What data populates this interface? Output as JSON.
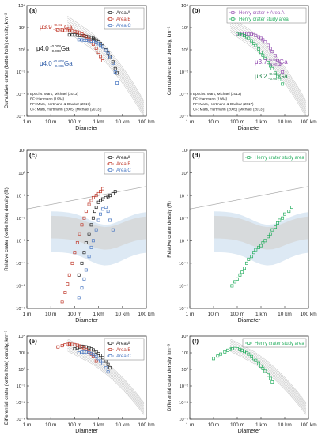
{
  "chart_data": [
    {
      "id": "a",
      "type": "scatter",
      "panel_label": "(a)",
      "ylabel": "Cumulative crater (kettle hole) density, km⁻²",
      "xlabel": "Diameter",
      "xlim": [
        0.001,
        100
      ],
      "ylim": [
        1e-06,
        10000
      ],
      "xscale": "log",
      "yscale": "log",
      "xticks": [
        "1 m",
        "10 m",
        "100 m",
        "1 km",
        "10 km",
        "100 km"
      ],
      "yticks": [
        "10⁻⁶",
        "10⁻⁴",
        "10⁻²",
        "10⁰",
        "10²",
        "10⁴"
      ],
      "ytick_values": [
        -6,
        -4,
        -2,
        0,
        2,
        4
      ],
      "legend": [
        "Area A",
        "Area B",
        "Area C"
      ],
      "legend_position": "top-right",
      "series": [
        {
          "name": "Area A",
          "x": [
            0.06,
            0.08,
            0.1,
            0.13,
            0.16,
            0.2,
            0.25,
            0.3,
            0.4,
            0.5,
            0.6,
            0.7,
            0.8,
            1,
            1.2,
            1.5,
            2,
            2.5,
            3,
            4,
            5,
            6
          ],
          "y": [
            22,
            22,
            22,
            21,
            20,
            19,
            18,
            17,
            15,
            13,
            11,
            9,
            7.5,
            5,
            3.6,
            2.2,
            1,
            0.5,
            0.25,
            0.08,
            0.02,
            0.008
          ]
        },
        {
          "name": "Area B",
          "x": [
            0.02,
            0.03,
            0.04,
            0.05,
            0.06,
            0.08,
            0.1,
            0.13,
            0.16,
            0.2,
            0.25,
            0.3,
            0.4,
            0.5,
            0.6,
            0.8,
            1,
            1.2,
            1.5
          ],
          "y": [
            60,
            58,
            56,
            54,
            52,
            49,
            45,
            40,
            34,
            27,
            20,
            15,
            9,
            5,
            3.2,
            1.4,
            0.6,
            0.25,
            0.1
          ]
        },
        {
          "name": "Area C",
          "x": [
            0.15,
            0.2,
            0.25,
            0.3,
            0.4,
            0.5,
            0.6,
            0.8,
            1,
            1.2,
            1.5,
            2,
            2.5,
            3,
            4,
            5,
            6
          ],
          "y": [
            8,
            7.8,
            7.5,
            7.2,
            6.8,
            6.2,
            5.6,
            4.5,
            3.5,
            2.7,
            1.8,
            0.9,
            0.45,
            0.2,
            0.06,
            0.01,
            0.001
          ]
        }
      ],
      "annotations": [
        {
          "text": "μ3.9",
          "sup": "+0.01",
          "sub": "−0.01",
          "unit": "Ga",
          "color": "#c0392b"
        },
        {
          "text": "μ4.0",
          "sup": "+0.008",
          "sub": "−0.008",
          "unit": "Ga",
          "color": "#222222"
        },
        {
          "text": "μ4.0",
          "sup": "+0.008",
          "sub": "−0.005",
          "unit": "Ga",
          "color": "#2e5ca8"
        }
      ],
      "notes": [
        "Epochs: Mars, Michael (2013)",
        "EF: Hartmann (1984)",
        "PF: Mars, Hartmann & Daubar (2017)",
        "CF: Mars, Hartmann (2005) [Michael (2013)]"
      ]
    },
    {
      "id": "b",
      "type": "scatter",
      "panel_label": "(b)",
      "ylabel": "Cumulative crater density, km⁻²",
      "xlabel": "Diameter",
      "xlim": [
        0.001,
        100
      ],
      "ylim": [
        1e-06,
        10000
      ],
      "xscale": "log",
      "yscale": "log",
      "xticks": [
        "1 m",
        "10 m",
        "100 m",
        "1 km",
        "10 km",
        "100 km"
      ],
      "yticks": [
        "10⁻⁶",
        "10⁻⁴",
        "10⁻²",
        "10⁰",
        "10²",
        "10⁴"
      ],
      "ytick_values": [
        -6,
        -4,
        -2,
        0,
        2,
        4
      ],
      "legend": [
        "Henry crater + Area A",
        "Henry crater study area"
      ],
      "legend_position": "top-right",
      "series": [
        {
          "name": "Henry crater + Area A",
          "x": [
            0.1,
            0.13,
            0.16,
            0.2,
            0.25,
            0.3,
            0.4,
            0.5,
            0.6,
            0.8,
            1,
            1.2,
            1.5,
            2,
            2.5,
            3,
            4,
            5,
            6,
            8
          ],
          "y": [
            30,
            30,
            30,
            30,
            29,
            28,
            26,
            23,
            20,
            15,
            11,
            8,
            5,
            2.5,
            1.3,
            0.7,
            0.3,
            0.12,
            0.05,
            0.01
          ]
        },
        {
          "name": "Henry crater study area",
          "x": [
            0.1,
            0.13,
            0.16,
            0.2,
            0.25,
            0.3,
            0.4,
            0.5,
            0.6,
            0.8,
            1,
            1.2,
            1.5,
            2,
            2.5,
            3,
            4,
            5,
            6,
            8
          ],
          "y": [
            25,
            24,
            22,
            19,
            15,
            11,
            6.5,
            3.8,
            2.4,
            1.2,
            0.6,
            0.33,
            0.17,
            0.07,
            0.035,
            0.02,
            0.008,
            0.004,
            0.002,
            0.0008
          ]
        }
      ],
      "annotations": [
        {
          "text": "μ3.7",
          "sup": "+0.009",
          "sub": "−0.0010",
          "unit": "Ga",
          "color": "#8e44ad"
        },
        {
          "text": "μ3.2",
          "sup": "+0.06",
          "sub": "−0.09",
          "unit": "Ga",
          "color": "#1e8449"
        }
      ],
      "notes": [
        "Epochs: Mars, Michael (2013)",
        "EF: Hartmann (1984)",
        "PF: Mars, Hartmann & Daubar (2017)",
        "CF: Mars, Hartmann (2005) [Michael (2013)]"
      ]
    },
    {
      "id": "c",
      "type": "scatter",
      "panel_label": "(c)",
      "ylabel": "Relative crater (kettle hole) density (R)",
      "xlabel": "Diameter",
      "xlim": [
        0.001,
        100
      ],
      "ylim": [
        1e-06,
        10
      ],
      "xscale": "log",
      "yscale": "log",
      "xticks": [
        "1 m",
        "10 m",
        "100 m",
        "1 km",
        "10 km",
        "100 km"
      ],
      "yticks": [
        "10⁻⁶",
        "10⁻⁵",
        "10⁻⁴",
        "10⁻³",
        "10⁻²",
        "10⁻¹",
        "10⁰",
        "10¹"
      ],
      "ytick_values": [
        -6,
        -5,
        -4,
        -3,
        -2,
        -1,
        0,
        1
      ],
      "legend": [
        "Area A",
        "Area B",
        "Area C"
      ],
      "legend_position": "top-right",
      "series": [
        {
          "name": "Area A",
          "x": [
            0.15,
            0.2,
            0.25,
            0.3,
            0.4,
            0.5,
            0.6,
            0.7,
            0.8,
            1,
            1.2,
            1.5,
            2,
            2.5,
            3,
            4,
            5
          ],
          "y": [
            3e-05,
            0.0001,
            0.0003,
            0.0008,
            0.002,
            0.005,
            0.01,
            0.02,
            0.03,
            0.05,
            0.06,
            0.07,
            0.08,
            0.09,
            0.1,
            0.12,
            0.15
          ]
        },
        {
          "name": "Area B",
          "x": [
            0.03,
            0.04,
            0.05,
            0.06,
            0.08,
            0.1,
            0.13,
            0.16,
            0.2,
            0.25,
            0.3,
            0.4,
            0.5,
            0.6,
            0.8,
            1,
            1.2,
            1.5
          ],
          "y": [
            2e-06,
            5e-06,
            1.2e-05,
            3e-05,
            0.0001,
            0.0003,
            0.0008,
            0.002,
            0.005,
            0.01,
            0.02,
            0.04,
            0.06,
            0.08,
            0.1,
            0.12,
            0.15,
            0.2
          ]
        },
        {
          "name": "Area C",
          "x": [
            0.15,
            0.2,
            0.25,
            0.3,
            0.4,
            0.5,
            0.6,
            0.8,
            1,
            1.2,
            1.5,
            2,
            2.5,
            3,
            4
          ],
          "y": [
            3e-06,
            8e-06,
            2e-05,
            5e-05,
            0.0002,
            0.0005,
            0.001,
            0.003,
            0.008,
            0.015,
            0.025,
            0.03,
            0.02,
            0.008,
            0.003
          ]
        }
      ]
    },
    {
      "id": "d",
      "type": "scatter",
      "panel_label": "(d)",
      "ylabel": "Relative crater density (R)",
      "xlabel": "Diameter",
      "xlim": [
        0.001,
        100
      ],
      "ylim": [
        1e-06,
        10
      ],
      "xscale": "log",
      "yscale": "log",
      "xticks": [
        "1 m",
        "10 m",
        "100 m",
        "1 km",
        "10 km",
        "100 km"
      ],
      "yticks": [
        "10⁻⁶",
        "10⁻⁵",
        "10⁻⁴",
        "10⁻³",
        "10⁻²",
        "10⁻¹",
        "10⁰",
        "10¹"
      ],
      "ytick_values": [
        -6,
        -5,
        -4,
        -3,
        -2,
        -1,
        0,
        1
      ],
      "legend": [
        "Henry crater study area"
      ],
      "legend_position": "top-right",
      "series": [
        {
          "name": "Henry crater study area",
          "x": [
            0.06,
            0.08,
            0.1,
            0.13,
            0.16,
            0.2,
            0.25,
            0.3,
            0.4,
            0.5,
            0.6,
            0.8,
            1,
            1.2,
            1.5,
            2,
            2.5,
            3,
            4,
            5,
            6,
            8,
            10,
            15,
            20
          ],
          "y": [
            1e-05,
            1.5e-05,
            2e-05,
            3e-05,
            4e-05,
            6e-05,
            0.0001,
            0.00015,
            0.0002,
            0.0003,
            0.0004,
            0.0005,
            0.0006,
            0.0008,
            0.001,
            0.0015,
            0.002,
            0.003,
            0.004,
            0.006,
            0.008,
            0.01,
            0.015,
            0.02,
            0.03
          ]
        }
      ]
    },
    {
      "id": "e",
      "type": "scatter",
      "panel_label": "(e)",
      "ylabel": "Differential crater (kettle hole) density, km⁻³",
      "xlabel": "Diameter",
      "xlim": [
        0.001,
        100
      ],
      "ylim": [
        1e-06,
        10000
      ],
      "xscale": "log",
      "yscale": "log",
      "xticks": [
        "1 m",
        "10 m",
        "100 m",
        "1 km",
        "10 km",
        "100 km"
      ],
      "yticks": [
        "10⁻⁶",
        "10⁻⁴",
        "10⁻²",
        "10⁰",
        "10²",
        "10⁴"
      ],
      "ytick_values": [
        -6,
        -4,
        -2,
        0,
        2,
        4
      ],
      "legend": [
        "Area A",
        "Area B",
        "Area C"
      ],
      "legend_position": "top-right",
      "series": [
        {
          "name": "Area A",
          "x": [
            0.1,
            0.13,
            0.16,
            0.2,
            0.25,
            0.3,
            0.4,
            0.5,
            0.6,
            0.8,
            1,
            1.2,
            1.5,
            2,
            2.5,
            3
          ],
          "y": [
            300,
            400,
            500,
            600,
            550,
            500,
            400,
            300,
            220,
            130,
            80,
            50,
            25,
            10,
            4,
            1.5
          ]
        },
        {
          "name": "Area B",
          "x": [
            0.02,
            0.03,
            0.04,
            0.05,
            0.06,
            0.08,
            0.1,
            0.13,
            0.16,
            0.2,
            0.25,
            0.3,
            0.4,
            0.5,
            0.6,
            0.8
          ],
          "y": [
            500,
            700,
            900,
            1000,
            1100,
            1000,
            900,
            800,
            650,
            500,
            350,
            250,
            130,
            70,
            35,
            10
          ]
        },
        {
          "name": "Area C",
          "x": [
            0.15,
            0.2,
            0.25,
            0.3,
            0.4,
            0.5,
            0.6,
            0.8,
            1,
            1.2,
            1.5,
            2,
            2.5
          ],
          "y": [
            100,
            120,
            130,
            120,
            100,
            80,
            60,
            35,
            20,
            10,
            5,
            1.5,
            0.5
          ]
        }
      ]
    },
    {
      "id": "f",
      "type": "scatter",
      "panel_label": "(f)",
      "ylabel": "Differential crater density, km⁻³",
      "xlabel": "Diameter",
      "xlim": [
        0.001,
        100
      ],
      "ylim": [
        1e-06,
        10000
      ],
      "xscale": "log",
      "yscale": "log",
      "xticks": [
        "1 m",
        "10 m",
        "100 m",
        "1 km",
        "10 km",
        "100 km"
      ],
      "yticks": [
        "10⁻⁶",
        "10⁻⁴",
        "10⁻²",
        "10⁰",
        "10²",
        "10⁴"
      ],
      "ytick_values": [
        -6,
        -4,
        -2,
        0,
        2,
        4
      ],
      "legend": [
        "Henry crater study area"
      ],
      "legend_position": "top-right",
      "series": [
        {
          "name": "Henry crater study area",
          "x": [
            0.01,
            0.015,
            0.02,
            0.03,
            0.04,
            0.05,
            0.06,
            0.08,
            0.1,
            0.13,
            0.16,
            0.2,
            0.25,
            0.3,
            0.4,
            0.5,
            0.6,
            0.8,
            1,
            1.2,
            1.5,
            2,
            2.5,
            3
          ],
          "y": [
            20,
            40,
            70,
            130,
            200,
            260,
            300,
            320,
            300,
            250,
            200,
            150,
            100,
            70,
            35,
            20,
            12,
            5,
            2.5,
            1.3,
            0.6,
            0.2,
            0.08,
            0.03
          ]
        }
      ]
    }
  ],
  "colors": {
    "Area A": "#222222",
    "Area B": "#c0392b",
    "Area C": "#4a78c2",
    "Henry crater + Area A": "#9b59b6",
    "Henry crater study area": "#27ae60",
    "isochron": "#c8c8c8",
    "band_gray": "#d6d6d6",
    "band_blue": "#cfe0ef"
  }
}
